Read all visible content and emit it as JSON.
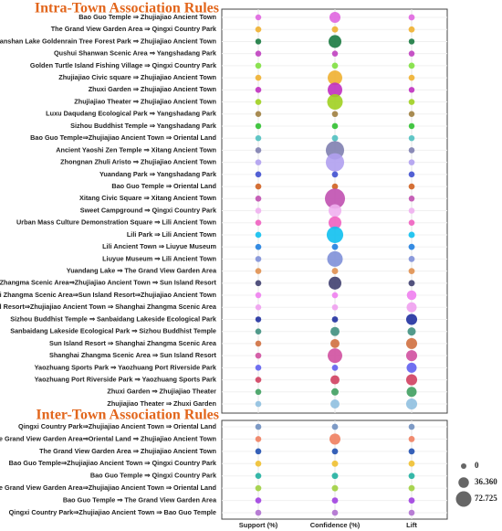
{
  "chart_data": {
    "type": "bubble-matrix",
    "columns": [
      "Support (%)",
      "Confidence (%)",
      "Lift"
    ],
    "size_legend": [
      0,
      {
        "value": 36.36,
        "label": "36.360"
      },
      {
        "value": 72.725,
        "label": "72.725"
      }
    ],
    "panels": [
      {
        "title": "Intra-Town Association Rules",
        "categories": [
          "Bao Guo Temple ⇒ Zhujiajiao Ancient Town",
          "The Grand View Garden Area ⇒ Qingxi Country Park",
          "Dianshan Lake Goldenrain Tree Forest Park ⇒ Zhujiajiao Ancient Town",
          "Qushui Shanwan Scenic Area ⇒ Yangshadang Park",
          "Golden Turtle Island Fishing Village ⇒ Qingxi Country Park",
          "Zhujiajiao Civic square ⇒ Zhujiajiao Ancient Town",
          "Zhuxi Garden ⇒ Zhujiajiao Ancient Town",
          "Zhujiajiao Theater ⇒ Zhujiajiao Ancient Town",
          "Luxu Daqudang Ecological Park ⇒ Yangshadang Park",
          "Sizhou Buddhist Temple ⇒ Yangshadang Park",
          "Bao Guo Temple⇒Zhujiajiao Ancient Town ⇒ Oriental Land",
          "Ancient Yaoshi Zen Temple ⇒ Xitang Ancient Town",
          "Zhongnan Zhuli Aristo ⇒ Zhujiajiao Ancient Town",
          "Yuandang Park ⇒ Yangshadang Park",
          "Bao Guo Temple ⇒ Oriental Land",
          "Xitang Civic Square ⇒ Xitang Ancient Town",
          "Sweet Campground ⇒ Qingxi Country Park",
          "Urban Mass Culture Demonstration Square ⇒ Lili Ancient Town",
          "Lili Park ⇒ Lili Ancient Town",
          "Lili Ancient Town ⇒ Liuyue Museum",
          "Liuyue Museum ⇒ Lili Ancient Town",
          "Yuandang Lake ⇒ The Grand View Garden Area",
          "Shanghai Zhangma Scenic Area⇒Zhujiajiao Ancient Town ⇒ Sun Island Resort",
          "Shanghai Zhangma Scenic Area⇒Sun Island Resort⇒Zhujiajiao Ancient Town",
          "Sun Island Resort⇒Zhujiajiao Ancient Town ⇒ Shanghai Zhangma Scenic Area",
          "Sizhou Buddhist Temple ⇒ Sanbaidang Lakeside Ecological Park",
          "Sanbaidang Lakeside Ecological Park ⇒ Sizhou Buddhist Temple",
          "Sun Island Resort ⇒ Shanghai Zhangma Scenic Area",
          "Shanghai Zhangma Scenic Area ⇒ Sun Island Resort",
          "Yaozhuang Sports Park ⇒ Yaozhuang Port Riverside Park",
          "Yaozhuang Port Riverside Park ⇒ Yaozhuang Sports Park",
          "Zhuxi Garden ⇒ Zhujiajiao Theater",
          "Zhujiajiao Theater ⇒ Zhuxi Garden"
        ],
        "colors": [
          "#e066e0",
          "#f0b030",
          "#1a7a40",
          "#c040c0",
          "#80e040",
          "#f0b030",
          "#c030c0",
          "#a0d020",
          "#a08040",
          "#30c030",
          "#50c0c0",
          "#8080b0",
          "#b0a0f0",
          "#4050d0",
          "#d06020",
          "#c050b0",
          "#f0b0f0",
          "#f060c0",
          "#10c0f0",
          "#2080e0",
          "#8090d8",
          "#e09050",
          "#404070",
          "#f080f0",
          "#f0a0f0",
          "#2030a0",
          "#409080",
          "#d07040",
          "#d050a0",
          "#6060f0",
          "#d04060",
          "#40a060",
          "#90c0e0"
        ],
        "series": [
          {
            "values": [
              3,
              4,
              3,
              3,
              4,
              4,
              4,
              4,
              3,
              3,
              3,
              4,
              4,
              4,
              4,
              4,
              4,
              4,
              4,
              4,
              4,
              4,
              4,
              3,
              3,
              3,
              4,
              4,
              4,
              4,
              4,
              4,
              4
            ]
          },
          {
            "values": [
              40,
              6,
              53,
              3,
              5,
              66,
              66,
              73,
              4,
              4,
              5,
              93,
              93,
              5,
              4,
              106,
              53,
              53,
              80,
              5,
              73,
              6,
              53,
              4,
              4,
              5,
              26,
              26,
              66,
              5,
              26,
              13,
              26
            ]
          },
          {
            "values": [
              5,
              5,
              3,
              3,
              5,
              4,
              3,
              4,
              3,
              3,
              3,
              4,
              4,
              4,
              4,
              3,
              4,
              4,
              6,
              5,
              5,
              5,
              6,
              30,
              33,
              40,
              20,
              40,
              40,
              33,
              40,
              33,
              40
            ]
          }
        ]
      },
      {
        "title": "Inter-Town Association Rules",
        "categories": [
          "Qingxi Country Park⇒Zhujiajiao Ancient Town ⇒ Oriental Land",
          "The Grand View Garden Area⇒Oriental Land ⇒ Zhujiajiao Ancient Town",
          "The Grand View Garden Area ⇒ Zhujiajiao Ancient Town",
          "Bao Guo Temple⇒Zhujiajiao Ancient Town ⇒ Qingxi Country Park",
          "Bao Guo Temple ⇒ Qingxi Country Park",
          "The Grand View Garden Area⇒Zhujiajiao Ancient Town ⇒ Oriental Land",
          "Bao Guo Temple ⇒ The Grand View Garden Area",
          "Qingxi Country Park⇒Zhujiajiao Ancient Town ⇒ Bao Guo Temple"
        ],
        "colors": [
          "#7090c0",
          "#f08060",
          "#2050b0",
          "#f0c030",
          "#20b0a0",
          "#a0d040",
          "#a040e0",
          "#b070d0"
        ],
        "series": [
          {
            "values": [
              4,
              4,
              4,
              4,
              4,
              4,
              4,
              4
            ]
          },
          {
            "values": [
              5,
              40,
              5,
              6,
              6,
              6,
              5,
              4
            ]
          },
          {
            "values": [
              4,
              5,
              5,
              5,
              5,
              5,
              5,
              4
            ]
          }
        ]
      }
    ]
  }
}
